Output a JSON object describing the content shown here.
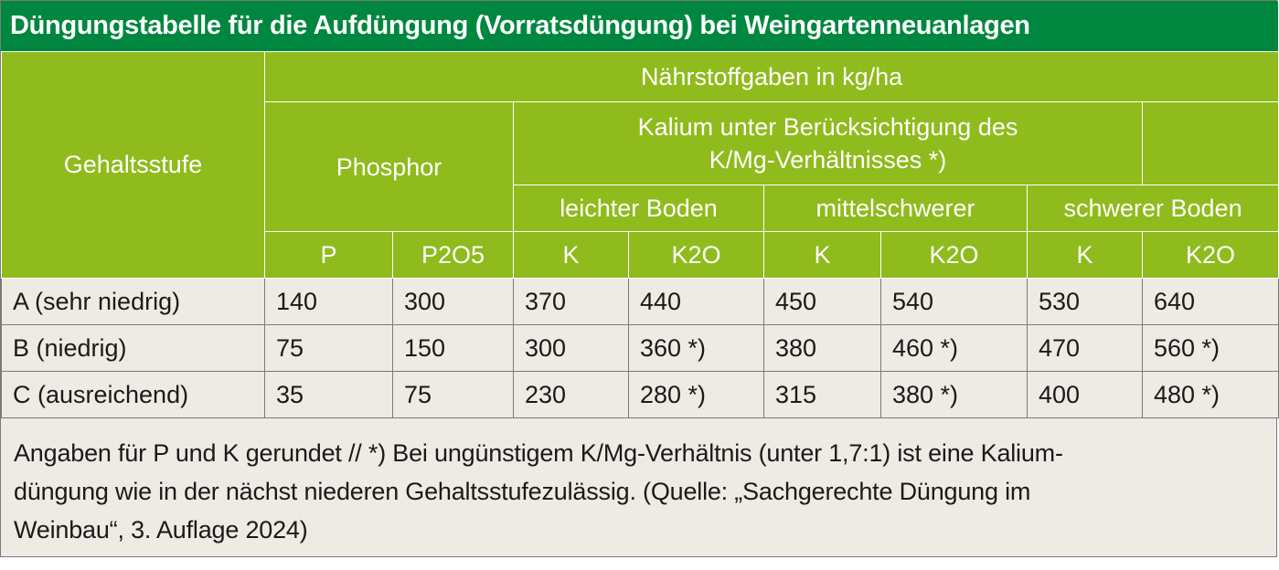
{
  "title": "Düngungstabelle für die Aufdüngung (Vorratsdüngung) bei Weingartenneuanlagen",
  "header": {
    "gehaltsstufe": "Gehaltsstufe",
    "naehrstoffgaben": "Nährstoffgaben in kg/ha",
    "phosphor": "Phosphor",
    "kalium_line1": "Kalium unter Berücksichtigung des",
    "kalium_line2": "K/Mg-Verhältnisses *)",
    "kalium_extra": "",
    "leichter_boden": "leichter Boden",
    "mittelschwerer": "mittelschwerer",
    "schwerer_boden": "schwerer Boden",
    "units": [
      "P",
      "P2O5",
      "K",
      "K2O",
      "K",
      "K2O",
      "K",
      "K2O"
    ]
  },
  "rows": [
    {
      "label": "A (sehr niedrig)",
      "values": [
        "140",
        "300",
        "370",
        "440",
        "450",
        "540",
        "530",
        "640"
      ]
    },
    {
      "label": "B (niedrig)",
      "values": [
        "75",
        "150",
        "300",
        "360 *)",
        "380",
        "460 *)",
        "470",
        "560 *)"
      ]
    },
    {
      "label": "C (ausreichend)",
      "values": [
        "35",
        "75",
        "230",
        "280 *)",
        "315",
        "380 *)",
        "400",
        "480 *)"
      ]
    }
  ],
  "footnote": {
    "line1": "Angaben für P und K gerundet // *) Bei ungünstigem K/Mg-Verhältnis (unter 1,7:1) ist eine Kalium-",
    "line2": "düngung wie in der nächst niederen Gehaltsstufezulässig. (Quelle: „Sachgerechte Düngung im",
    "line3": "Weinbau“, 3. Auflage 2024)"
  },
  "colors": {
    "title_bg": "#00873f",
    "header_bg": "#8fbb1c",
    "body_bg": "#eeebe4",
    "text": "#1a1a1a"
  }
}
